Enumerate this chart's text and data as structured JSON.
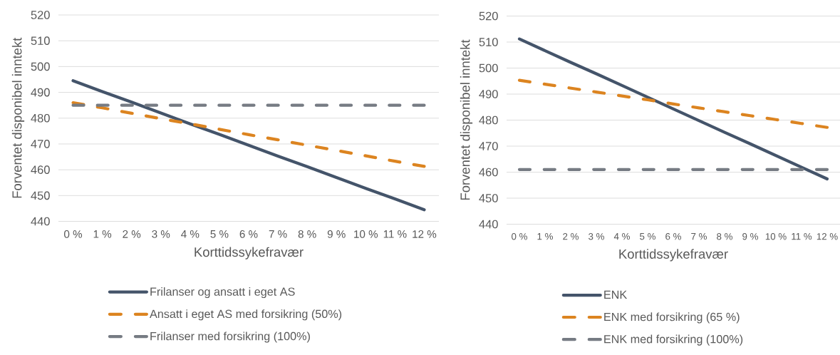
{
  "chart_data": [
    {
      "type": "line",
      "xlabel": "Korttidssykefravær",
      "ylabel": "Forventet disponibel inntekt",
      "categories": [
        "0 %",
        "1 %",
        "2 %",
        "3 %",
        "4 %",
        "5 %",
        "6 %",
        "7 %",
        "8 %",
        "9 %",
        "10 %",
        "11 %",
        "12 %"
      ],
      "ylim": [
        440,
        520
      ],
      "yticks": [
        440,
        450,
        460,
        470,
        480,
        490,
        500,
        510,
        520
      ],
      "grid": "y",
      "legend": "bottom",
      "series": [
        {
          "name": "Frilanser og ansatt i eget AS",
          "color": "#44546a",
          "line_style": "solid",
          "values": [
            494.5,
            490.3,
            486.2,
            482.0,
            477.8,
            473.7,
            469.5,
            465.3,
            461.2,
            457.0,
            452.8,
            448.7,
            444.5
          ]
        },
        {
          "name": "Ansatt i eget AS med forsikring (50%)",
          "color": "#dc8420",
          "line_style": "dashed",
          "values": [
            486.0,
            484.0,
            481.9,
            479.8,
            477.8,
            475.7,
            473.6,
            471.6,
            469.5,
            467.5,
            465.4,
            463.3,
            461.3
          ]
        },
        {
          "name": "Frilanser med forsikring (100%)",
          "color": "#767b83",
          "line_style": "dashed",
          "values": [
            485,
            485,
            485,
            485,
            485,
            485,
            485,
            485,
            485,
            485,
            485,
            485,
            485
          ]
        }
      ]
    },
    {
      "type": "line",
      "xlabel": "Korttidssykefravær",
      "ylabel": "Forventet disponibel inntekt",
      "categories": [
        "0 %",
        "1 %",
        "2 %",
        "3 %",
        "4 %",
        "5 %",
        "6 %",
        "7 %",
        "8 %",
        "9 %",
        "10 %",
        "11 %",
        "12 %"
      ],
      "ylim": [
        440,
        520
      ],
      "yticks": [
        440,
        450,
        460,
        470,
        480,
        490,
        500,
        510,
        520
      ],
      "grid": "y",
      "legend": "bottom",
      "series": [
        {
          "name": "ENK",
          "color": "#44546a",
          "line_style": "solid",
          "values": [
            511.2,
            506.7,
            502.2,
            497.8,
            493.3,
            488.8,
            484.3,
            479.8,
            475.3,
            470.9,
            466.4,
            461.9,
            457.4
          ]
        },
        {
          "name": "ENK med forsikring (65 %)",
          "color": "#dc8420",
          "line_style": "dashed",
          "values": [
            495.3,
            493.8,
            492.3,
            490.8,
            489.3,
            487.8,
            486.2,
            484.7,
            483.2,
            481.7,
            480.2,
            478.7,
            477.2
          ]
        },
        {
          "name": "ENK med forsikring (100%)",
          "color": "#767b83",
          "line_style": "dashed",
          "values": [
            461,
            461,
            461,
            461,
            461,
            461,
            461,
            461,
            461,
            461,
            461,
            461,
            461
          ]
        }
      ]
    }
  ]
}
